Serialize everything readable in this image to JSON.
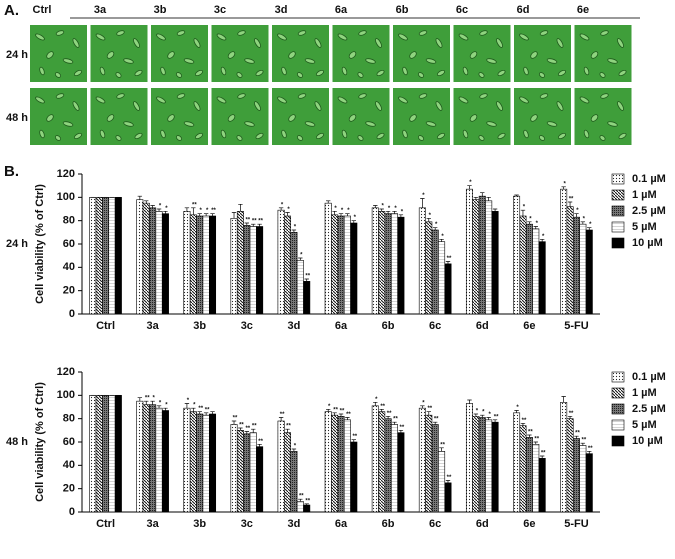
{
  "panel_a": {
    "label": "A.",
    "columns": [
      "Ctrl",
      "3a",
      "3b",
      "3c",
      "3d",
      "6a",
      "6b",
      "6c",
      "6d",
      "6e"
    ],
    "rows": [
      "24 h",
      "48 h"
    ]
  },
  "panel_b": {
    "label": "B."
  },
  "chart_data": [
    {
      "type": "bar",
      "row_label": "24 h",
      "y_label": "Cell viability (% of Ctrl)",
      "categories": [
        "Ctrl",
        "3a",
        "3b",
        "3c",
        "3d",
        "6a",
        "6b",
        "6c",
        "6d",
        "6e",
        "5-FU"
      ],
      "ylim": [
        0,
        120
      ],
      "yticks": [
        0,
        20,
        40,
        60,
        80,
        100,
        120
      ],
      "series": [
        {
          "name": "0.1 µM",
          "values": [
            100,
            98,
            88,
            82,
            89,
            95,
            91,
            91,
            107,
            101,
            107
          ],
          "errors": [
            0,
            3,
            3,
            5,
            2,
            2,
            2,
            8,
            3,
            1,
            2
          ],
          "significance": [
            null,
            null,
            null,
            null,
            "*",
            null,
            null,
            "*",
            "*",
            null,
            "*"
          ]
        },
        {
          "name": "1 µM",
          "values": [
            100,
            95,
            85,
            88,
            84,
            85,
            88,
            79,
            98,
            84,
            92
          ],
          "errors": [
            0,
            2,
            6,
            6,
            3,
            3,
            2,
            3,
            2,
            5,
            4
          ],
          "significance": [
            null,
            null,
            "**",
            null,
            "*",
            "*",
            "*",
            "*",
            null,
            "*",
            "**"
          ]
        },
        {
          "name": "2.5 µM",
          "values": [
            100,
            91,
            84,
            76,
            70,
            84,
            86,
            72,
            101,
            77,
            83
          ],
          "errors": [
            0,
            2,
            2,
            2,
            2,
            2,
            2,
            2,
            3,
            2,
            3
          ],
          "significance": [
            null,
            null,
            "*",
            "**",
            "*",
            "*",
            "*",
            "*",
            null,
            "*",
            "*"
          ]
        },
        {
          "name": "5 µM",
          "values": [
            100,
            88,
            84,
            75,
            46,
            84,
            86,
            62,
            97,
            73,
            77
          ],
          "errors": [
            0,
            2,
            2,
            2,
            2,
            2,
            2,
            2,
            3,
            2,
            2
          ],
          "significance": [
            null,
            "*",
            "*",
            "**",
            "*",
            "*",
            "*",
            "*",
            null,
            "*",
            "*"
          ]
        },
        {
          "name": "10 µM",
          "values": [
            100,
            86,
            84,
            75,
            28,
            78,
            83,
            43,
            88,
            62,
            72
          ],
          "errors": [
            0,
            2,
            2,
            2,
            2,
            2,
            2,
            2,
            2,
            2,
            2
          ],
          "significance": [
            null,
            "*",
            "**",
            "**",
            "**",
            "*",
            "*",
            "**",
            null,
            "*",
            "*"
          ]
        }
      ]
    },
    {
      "type": "bar",
      "row_label": "48 h",
      "y_label": "Cell viability (% of Ctrl)",
      "categories": [
        "Ctrl",
        "3a",
        "3b",
        "3c",
        "3d",
        "6a",
        "6b",
        "6c",
        "6d",
        "6e",
        "5-FU"
      ],
      "ylim": [
        0,
        120
      ],
      "yticks": [
        0,
        20,
        40,
        60,
        80,
        100,
        120
      ],
      "series": [
        {
          "name": "0.1 µM",
          "values": [
            100,
            95,
            89,
            75,
            78,
            86,
            91,
            89,
            93,
            85,
            94
          ],
          "errors": [
            0,
            3,
            4,
            3,
            3,
            2,
            3,
            2,
            3,
            2,
            5
          ],
          "significance": [
            null,
            null,
            "*",
            "**",
            "**",
            "*",
            "*",
            "*",
            null,
            "*",
            null
          ]
        },
        {
          "name": "1 µM",
          "values": [
            100,
            92,
            86,
            70,
            68,
            83,
            86,
            83,
            82,
            74,
            80
          ],
          "errors": [
            0,
            3,
            3,
            2,
            3,
            2,
            2,
            3,
            2,
            2,
            2
          ],
          "significance": [
            null,
            "**",
            "*",
            "**",
            "**",
            "**",
            "**",
            "**",
            "*",
            "**",
            "**"
          ]
        },
        {
          "name": "2.5 µM",
          "values": [
            100,
            92,
            84,
            67,
            52,
            82,
            80,
            75,
            81,
            64,
            63
          ],
          "errors": [
            0,
            3,
            2,
            2,
            2,
            2,
            2,
            2,
            2,
            2,
            2
          ],
          "significance": [
            null,
            "*",
            "**",
            "**",
            "*",
            "**",
            "**",
            "**",
            "*",
            "**",
            "**"
          ]
        },
        {
          "name": "5 µM",
          "values": [
            100,
            89,
            83,
            68,
            9,
            79,
            75,
            52,
            79,
            58,
            57
          ],
          "errors": [
            0,
            2,
            2,
            3,
            2,
            2,
            2,
            3,
            2,
            2,
            2
          ],
          "significance": [
            null,
            "*",
            "**",
            "**",
            "**",
            "**",
            "**",
            "**",
            "*",
            "**",
            "**"
          ]
        },
        {
          "name": "10 µM",
          "values": [
            100,
            87,
            84,
            56,
            6,
            60,
            68,
            25,
            77,
            46,
            50
          ],
          "errors": [
            0,
            2,
            2,
            2,
            1,
            2,
            2,
            2,
            2,
            2,
            2
          ],
          "significance": [
            null,
            "*",
            null,
            "**",
            "**",
            "**",
            "**",
            "**",
            "**",
            "**",
            "**"
          ]
        }
      ]
    }
  ]
}
